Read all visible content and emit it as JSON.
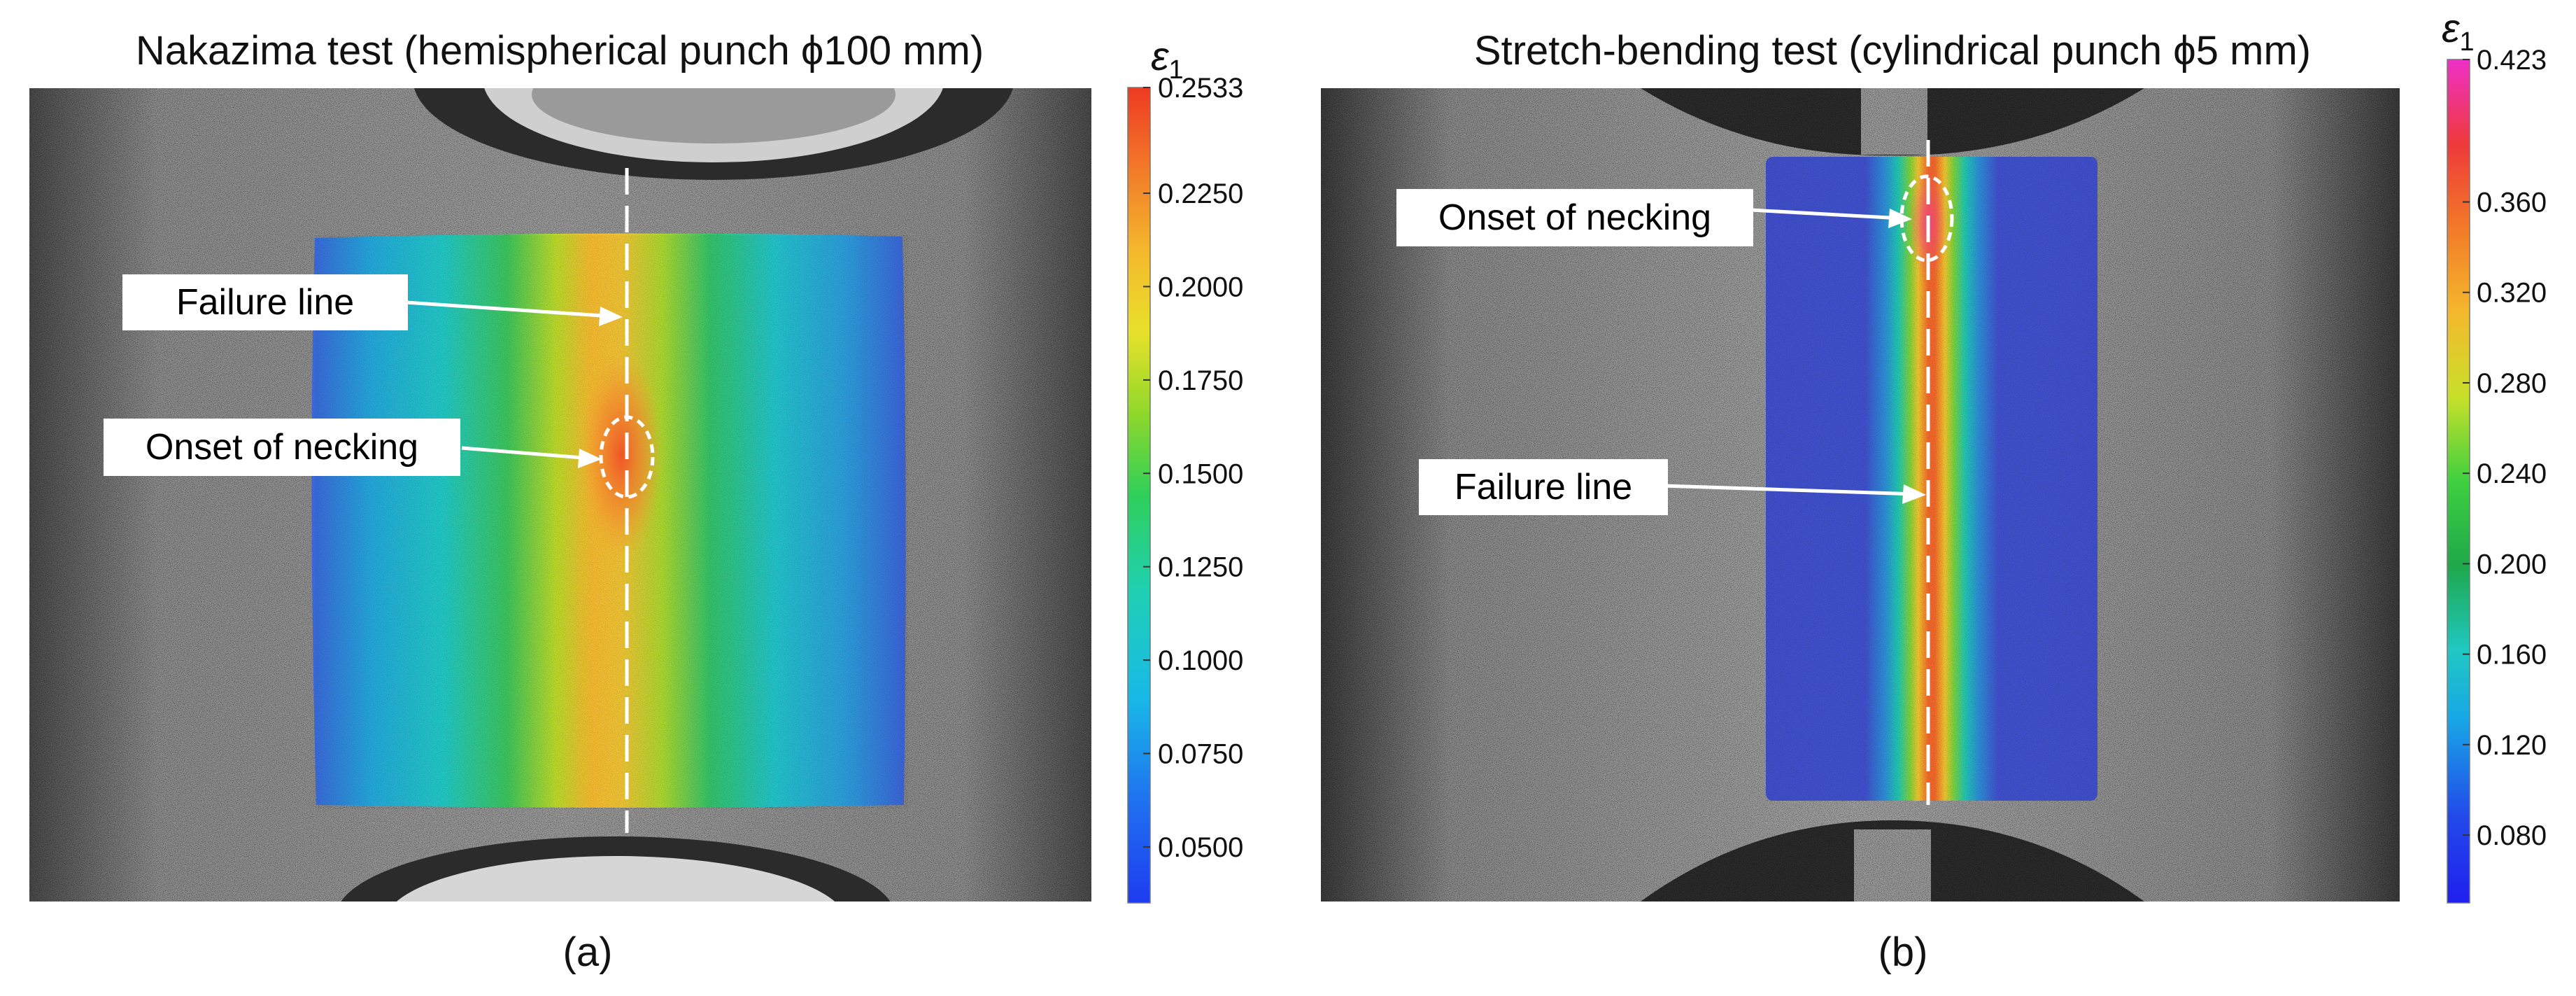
{
  "figure_a": {
    "title": "Nakazima test (hemispherical punch ϕ100 mm)",
    "caption": "(a)",
    "failure_label": "Failure line",
    "necking_label": "Onset of necking",
    "colorbar_symbol": "ε",
    "colorbar_subscript": "1",
    "colorbar_ticks": [
      "0.2533",
      "0.2250",
      "0.2000",
      "0.1750",
      "0.1500",
      "0.1250",
      "0.1000",
      "0.0750",
      "0.0500"
    ],
    "colorbar_range": [
      0.035,
      0.2533
    ],
    "colorbar_tick_values": [
      0.2533,
      0.225,
      0.2,
      0.175,
      0.15,
      0.125,
      0.1,
      0.075,
      0.05
    ]
  },
  "figure_b": {
    "title": "Stretch-bending test (cylindrical punch ϕ5 mm)",
    "caption": "(b)",
    "failure_label": "Failure line",
    "necking_label": "Onset of necking",
    "colorbar_symbol": "ε",
    "colorbar_subscript": "1",
    "colorbar_ticks": [
      "0.423",
      "0.360",
      "0.320",
      "0.280",
      "0.240",
      "0.200",
      "0.160",
      "0.120",
      "0.080"
    ],
    "colorbar_range": [
      0.05,
      0.423
    ],
    "colorbar_tick_values": [
      0.423,
      0.36,
      0.32,
      0.28,
      0.24,
      0.2,
      0.16,
      0.12,
      0.08
    ]
  },
  "colors": {
    "background": "#ffffff",
    "specimen_gray": "#8e8e8e",
    "punch_dark": "#2a2a2a",
    "arrow": "#ffffff",
    "label_box": "#ffffff"
  }
}
